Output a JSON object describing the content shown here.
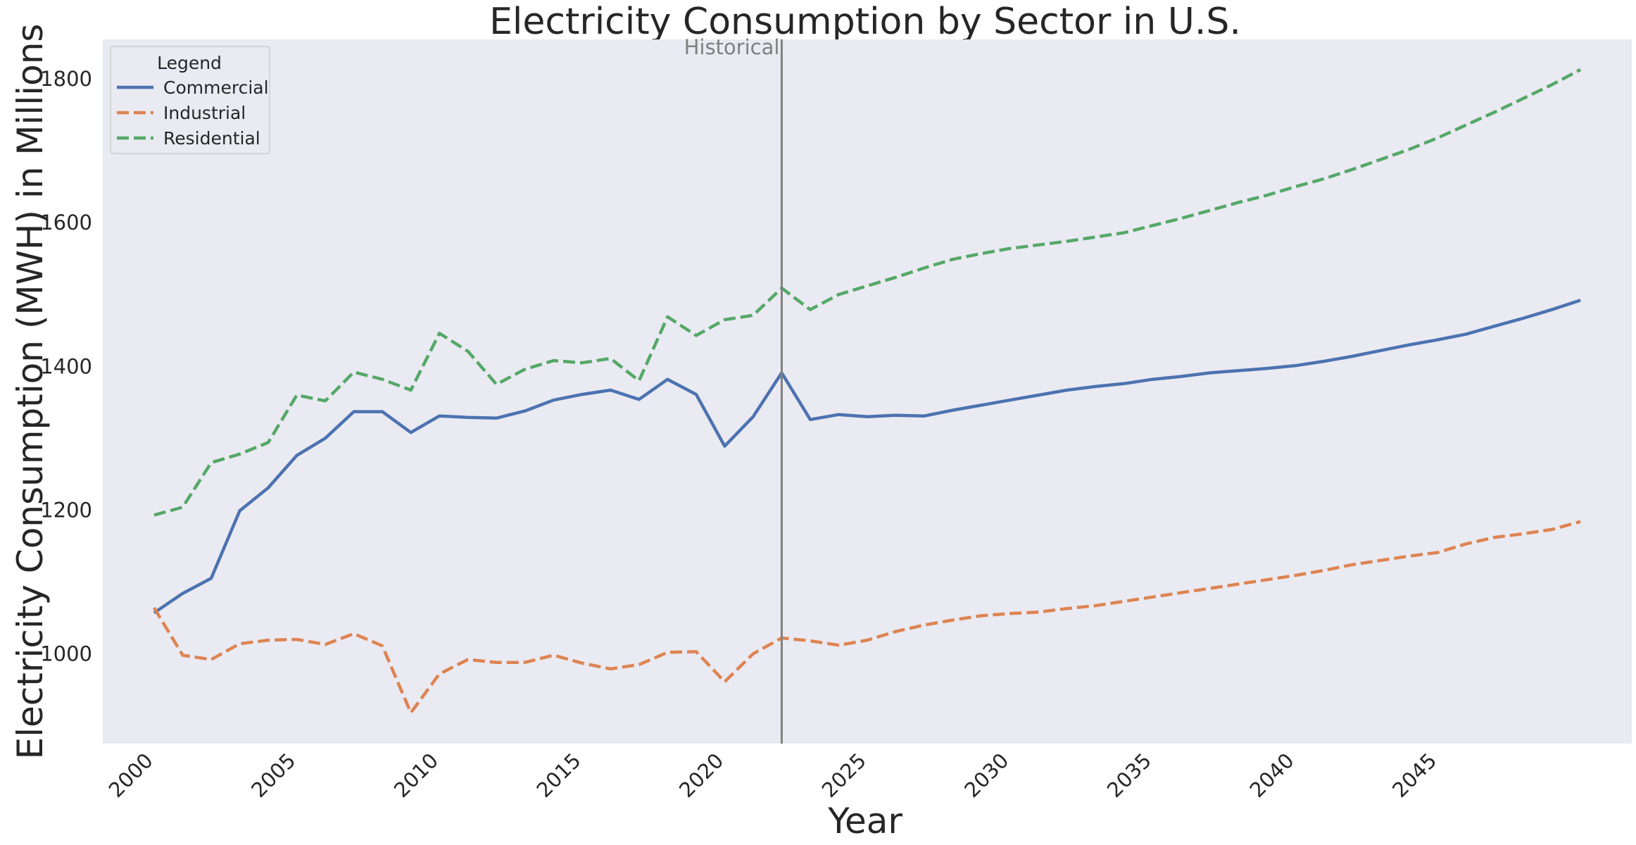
{
  "chart_data": {
    "type": "line",
    "title": "Electricity Consumption by Sector in U.S.",
    "xlabel": "Year",
    "ylabel": "Electricity Consumption (MWH) in Millions",
    "xlim": [
      1998.2,
      2051.8
    ],
    "ylim": [
      875,
      1855
    ],
    "x_ticks": [
      2000,
      2005,
      2010,
      2015,
      2020,
      2025,
      2030,
      2035,
      2040,
      2045
    ],
    "y_ticks": [
      1000,
      1200,
      1400,
      1600,
      1800
    ],
    "grid": false,
    "legend": {
      "title": "Legend",
      "placement": "top-left"
    },
    "annotation": {
      "text": "Historical",
      "x": 2022,
      "color": "#808080"
    },
    "x": [
      2000,
      2001,
      2002,
      2003,
      2004,
      2005,
      2006,
      2007,
      2008,
      2009,
      2010,
      2011,
      2012,
      2013,
      2014,
      2015,
      2016,
      2017,
      2018,
      2019,
      2020,
      2021,
      2022,
      2023,
      2024,
      2025,
      2026,
      2027,
      2028,
      2029,
      2030,
      2031,
      2032,
      2033,
      2034,
      2035,
      2036,
      2037,
      2038,
      2039,
      2040,
      2041,
      2042,
      2043,
      2044,
      2045,
      2046,
      2047,
      2048,
      2049,
      2050
    ],
    "series": [
      {
        "name": "Commercial",
        "color": "#4c72b0",
        "dash": "solid",
        "values": [
          1057,
          1084,
          1105,
          1199,
          1231,
          1276,
          1300,
          1337,
          1337,
          1308,
          1331,
          1329,
          1328,
          1338,
          1353,
          1361,
          1367,
          1354,
          1382,
          1361,
          1289,
          1330,
          1391,
          1326,
          1333,
          1330,
          1332,
          1331,
          1339,
          1346,
          1353,
          1360,
          1367,
          1372,
          1376,
          1382,
          1386,
          1391,
          1394,
          1397,
          1401,
          1407,
          1414,
          1422,
          1430,
          1437,
          1445,
          1456,
          1467,
          1479,
          1492
        ]
      },
      {
        "name": "Industrial",
        "color": "#dd8452",
        "dash": "dashed",
        "values": [
          1064,
          998,
          992,
          1014,
          1019,
          1020,
          1013,
          1028,
          1011,
          918,
          972,
          992,
          988,
          988,
          998,
          987,
          979,
          985,
          1002,
          1003,
          961,
          1000,
          1022,
          1018,
          1012,
          1019,
          1031,
          1040,
          1047,
          1053,
          1056,
          1058,
          1063,
          1067,
          1073,
          1079,
          1085,
          1091,
          1097,
          1103,
          1109,
          1116,
          1124,
          1130,
          1136,
          1141,
          1153,
          1162,
          1167,
          1173,
          1184
        ]
      },
      {
        "name": "Residential",
        "color": "#55a868",
        "dash": "dashed",
        "values": [
          1193,
          1204,
          1266,
          1278,
          1294,
          1360,
          1352,
          1392,
          1382,
          1367,
          1446,
          1421,
          1375,
          1396,
          1408,
          1405,
          1411,
          1380,
          1469,
          1443,
          1465,
          1471,
          1509,
          1479,
          1500,
          1512,
          1524,
          1537,
          1549,
          1557,
          1564,
          1569,
          1574,
          1580,
          1586,
          1596,
          1606,
          1617,
          1628,
          1638,
          1650,
          1661,
          1674,
          1688,
          1702,
          1718,
          1736,
          1754,
          1773,
          1792,
          1813
        ]
      }
    ]
  }
}
